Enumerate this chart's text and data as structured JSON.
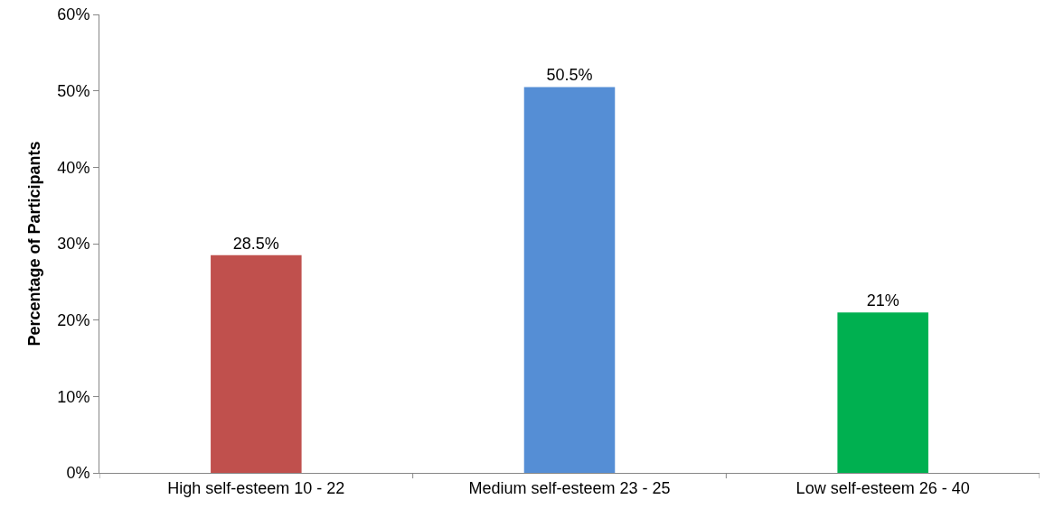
{
  "chart_data": {
    "type": "bar",
    "ylabel": "Percentage of Participants",
    "categories": [
      "High self-esteem 10 - 22",
      "Medium self-esteem 23 - 25",
      "Low self-esteem 26 - 40"
    ],
    "values": [
      28.5,
      50.5,
      21
    ],
    "colors": [
      "#c0504d",
      "#558ed5",
      "#00b050"
    ],
    "value_labels": [
      "28.5%",
      "50.5%",
      "21%"
    ],
    "ylim": [
      0,
      60
    ],
    "yticks": [
      {
        "value": 0,
        "label": "0%"
      },
      {
        "value": 10,
        "label": "10%"
      },
      {
        "value": 20,
        "label": "20%"
      },
      {
        "value": 30,
        "label": "30%"
      },
      {
        "value": 40,
        "label": "40%"
      },
      {
        "value": 50,
        "label": "50%"
      },
      {
        "value": 60,
        "label": "60%"
      }
    ],
    "grid": false
  }
}
